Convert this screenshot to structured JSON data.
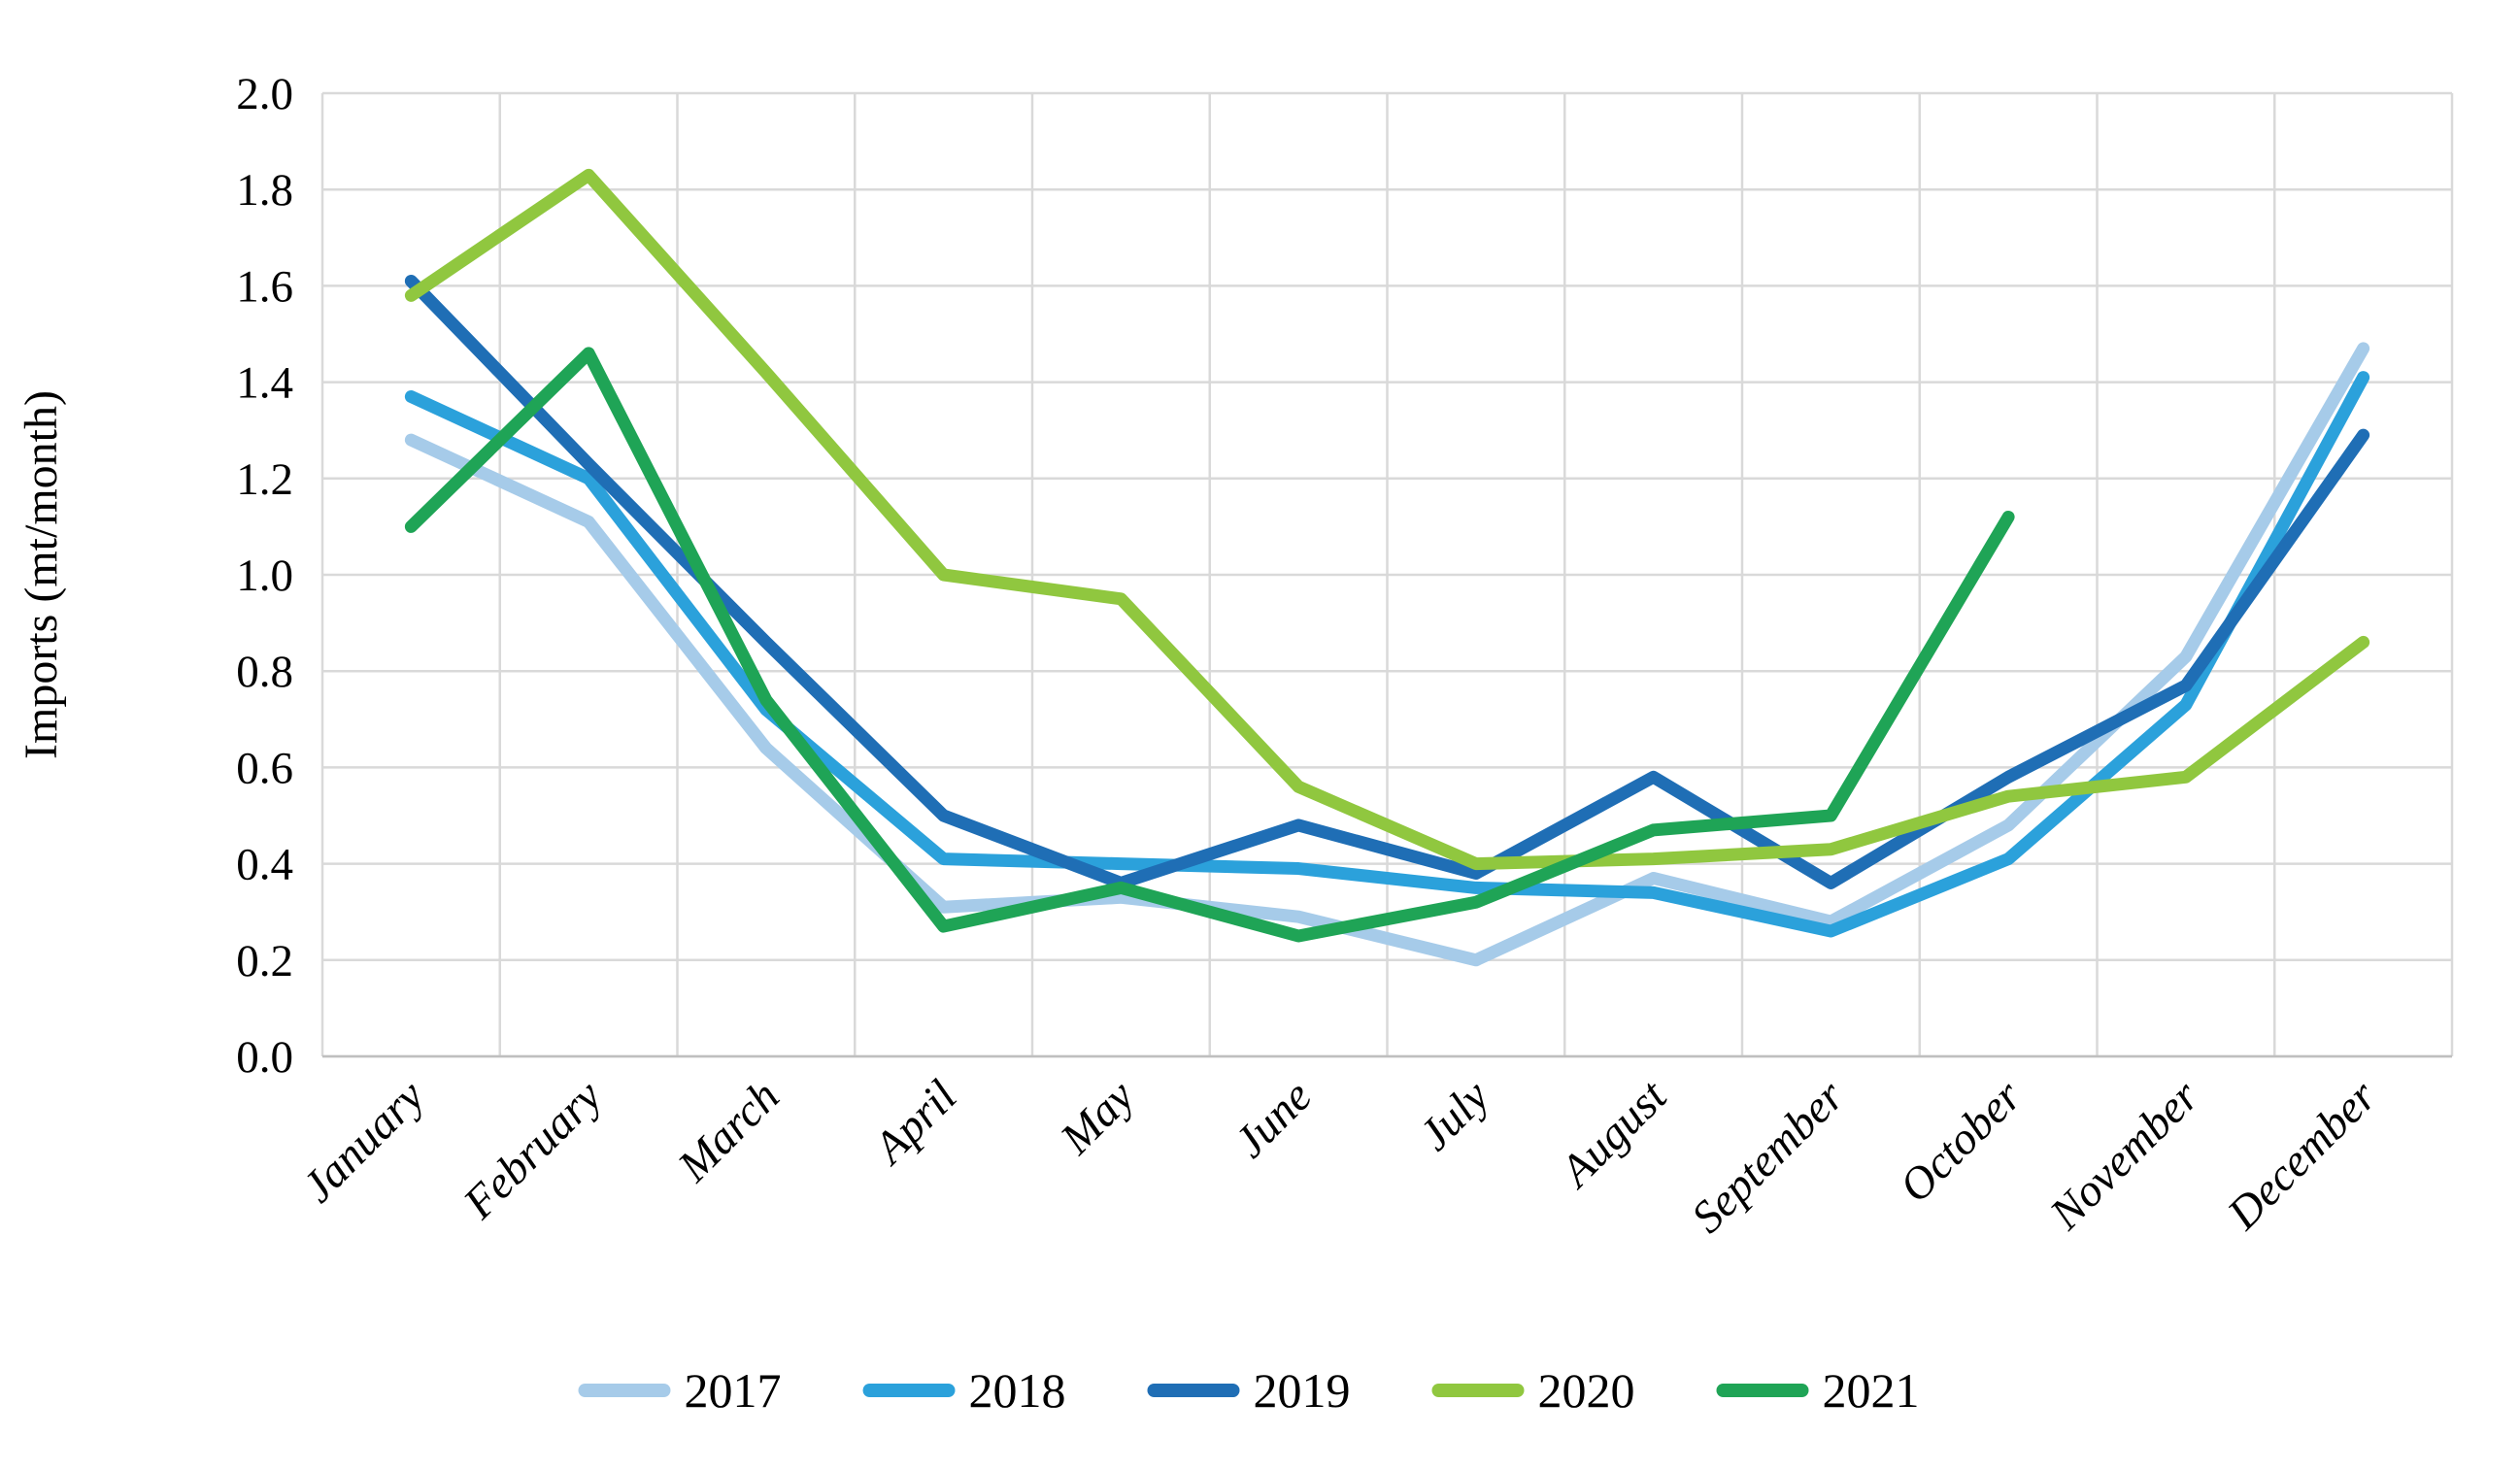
{
  "chart_data": {
    "type": "line",
    "title": "",
    "xlabel": "",
    "ylabel": "Imports (mt/month)",
    "categories": [
      "January",
      "February",
      "March",
      "April",
      "May",
      "June",
      "July",
      "August",
      "September",
      "October",
      "November",
      "December"
    ],
    "y_ticks": [
      "0.0",
      "0.2",
      "0.4",
      "0.6",
      "0.8",
      "1.0",
      "1.2",
      "1.4",
      "1.6",
      "1.8",
      "2.0"
    ],
    "ylim": [
      0.0,
      2.0
    ],
    "grid": true,
    "grid_color": "#D9D9D9",
    "axis_line_color": "#BFBFBF",
    "legend_position": "bottom",
    "series": [
      {
        "name": "2017",
        "color": "#A6CBE9",
        "values": [
          1.28,
          1.11,
          0.64,
          0.31,
          0.33,
          0.29,
          0.2,
          0.37,
          0.28,
          0.48,
          0.83,
          1.47
        ]
      },
      {
        "name": "2018",
        "color": "#2BA1DB",
        "values": [
          1.37,
          1.2,
          0.72,
          0.41,
          0.4,
          0.39,
          0.35,
          0.34,
          0.26,
          0.41,
          0.73,
          1.41
        ]
      },
      {
        "name": "2019",
        "color": "#1F6EB5",
        "values": [
          1.61,
          1.23,
          0.86,
          0.5,
          0.36,
          0.48,
          0.38,
          0.58,
          0.36,
          0.58,
          0.77,
          1.29
        ]
      },
      {
        "name": "2020",
        "color": "#90C73F",
        "values": [
          1.58,
          1.83,
          1.42,
          1.0,
          0.95,
          0.56,
          0.4,
          0.41,
          0.43,
          0.54,
          0.58,
          0.86
        ]
      },
      {
        "name": "2021",
        "color": "#1FA456",
        "values": [
          1.1,
          1.46,
          0.74,
          0.27,
          0.35,
          0.25,
          0.32,
          0.47,
          0.5,
          1.12,
          null,
          null
        ]
      }
    ]
  }
}
